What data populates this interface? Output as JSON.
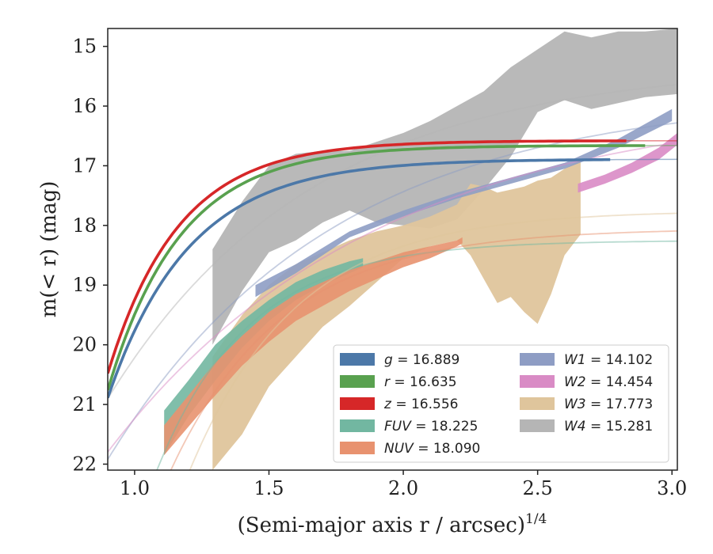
{
  "chart_data": {
    "type": "area",
    "xlabel": "(Semi-major axis r / arcsec)",
    "xlabel_superscript": "1/4",
    "ylabel": "m(< r) (mag)",
    "xlim": [
      0.9,
      3.02
    ],
    "ylim": [
      22.1,
      14.7
    ],
    "y_inverted": true,
    "xticks": [
      "1.0",
      "1.5",
      "2.0",
      "2.5",
      "3.0"
    ],
    "xtick_values": [
      1.0,
      1.5,
      2.0,
      2.5,
      3.0
    ],
    "yticks": [
      "15",
      "16",
      "17",
      "18",
      "19",
      "20",
      "21",
      "22"
    ],
    "ytick_values": [
      15,
      16,
      17,
      18,
      19,
      20,
      21,
      22
    ],
    "grid": false,
    "legend_placement": "lower-right",
    "legend_columns": 2,
    "series": [
      {
        "name": "g = 16.889",
        "var": "g",
        "value": "16.889",
        "color": "#4c78a8",
        "fit": {
          "m_tot": 16.889,
          "d": 4.0,
          "k": 3.3,
          "x0": 0.9
        },
        "band_end": 2.77,
        "band_width": 0.03
      },
      {
        "name": "r = 16.635",
        "var": "r",
        "value": "16.635",
        "color": "#59a14f",
        "fit": {
          "m_tot": 16.66,
          "d": 4.1,
          "k": 3.7,
          "x0": 0.9
        },
        "band_end": 2.9,
        "band_width": 0.03
      },
      {
        "name": "z = 16.556",
        "var": "z",
        "value": "16.556",
        "color": "#d62728",
        "fit": {
          "m_tot": 16.58,
          "d": 3.9,
          "k": 3.8,
          "x0": 0.9
        },
        "band_end": 2.83,
        "band_width": 0.03
      },
      {
        "name": "FUV = 18.225",
        "var": "FUV",
        "value": "18.225",
        "color": "#72b7a1",
        "fit": {
          "m_tot": 18.25,
          "d": 5.5,
          "k": 2.9,
          "x0": 0.96
        },
        "band_x": [
          1.11,
          1.2,
          1.3,
          1.4,
          1.5,
          1.6,
          1.7,
          1.8,
          1.85
        ],
        "band_upper": [
          21.1,
          20.6,
          20.0,
          19.6,
          19.25,
          18.95,
          18.75,
          18.6,
          18.55
        ],
        "band_lower": [
          21.85,
          21.2,
          20.6,
          20.05,
          19.6,
          19.25,
          19.0,
          18.8,
          18.7
        ]
      },
      {
        "name": "NUV = 18.090",
        "var": "NUV",
        "value": "18.090",
        "color": "#e8926f",
        "fit": {
          "m_tot": 18.05,
          "d": 5.6,
          "k": 2.4,
          "x0": 1.0
        },
        "band_x": [
          1.11,
          1.29,
          1.3,
          1.4,
          1.5,
          1.6,
          1.7,
          1.8,
          1.9,
          2.0,
          2.1,
          2.2,
          2.22
        ],
        "band_upper": [
          21.35,
          20.35,
          20.3,
          19.85,
          19.45,
          19.15,
          18.95,
          18.75,
          18.6,
          18.45,
          18.35,
          18.25,
          18.2
        ],
        "band_lower": [
          21.85,
          20.9,
          20.85,
          20.35,
          19.95,
          19.6,
          19.35,
          19.1,
          18.9,
          18.7,
          18.55,
          18.35,
          18.3
        ]
      },
      {
        "name": "W1 = 14.102",
        "var": "W1",
        "value": "14.102",
        "color": "#8e9dc4",
        "fit": {
          "m_tot": 15.8,
          "d": 6.5,
          "k": 1.2,
          "x0": 0.85
        },
        "band_x": [
          1.45,
          1.6,
          1.8,
          2.0,
          2.2,
          2.4,
          2.6,
          2.8,
          3.0
        ],
        "band_upper": [
          19.0,
          18.65,
          18.1,
          17.75,
          17.45,
          17.2,
          16.95,
          16.55,
          16.05
        ],
        "band_lower": [
          19.2,
          18.8,
          18.2,
          17.85,
          17.55,
          17.3,
          17.05,
          16.7,
          16.25
        ]
      },
      {
        "name": "W2 = 14.454",
        "var": "W2",
        "value": "14.454",
        "color": "#d98bc5",
        "fit": {
          "m_tot": 15.9,
          "d": 6.2,
          "k": 1.0,
          "x0": 0.85
        },
        "band_x": [
          2.65,
          2.75,
          2.85,
          2.95,
          3.02
        ],
        "band_upper": [
          17.3,
          17.15,
          16.95,
          16.7,
          16.45
        ],
        "band_lower": [
          17.45,
          17.3,
          17.12,
          16.9,
          16.65
        ]
      },
      {
        "name": "W3 = 17.773",
        "var": "W3",
        "value": "17.773",
        "color": "#dfc59c",
        "fit": {
          "m_tot": 17.75,
          "d": 5.0,
          "k": 2.5,
          "x0": 1.15
        },
        "band_x": [
          1.29,
          1.4,
          1.5,
          1.6,
          1.7,
          1.8,
          1.9,
          2.0,
          2.1,
          2.2,
          2.25,
          2.3,
          2.35,
          2.4,
          2.45,
          2.5,
          2.55,
          2.6,
          2.66
        ],
        "band_upper": [
          20.2,
          19.5,
          19.0,
          18.65,
          18.45,
          18.25,
          18.1,
          18.0,
          17.85,
          17.65,
          17.3,
          17.35,
          17.45,
          17.4,
          17.35,
          17.25,
          17.2,
          17.05,
          16.9
        ],
        "band_lower": [
          22.1,
          21.5,
          20.7,
          20.2,
          19.7,
          19.35,
          18.95,
          18.55,
          18.35,
          18.25,
          18.5,
          18.9,
          19.3,
          19.2,
          19.45,
          19.65,
          19.15,
          18.5,
          18.15
        ]
      },
      {
        "name": "W4 = 15.281",
        "var": "W4",
        "value": "15.281",
        "color": "#b5b5b5",
        "fit": {
          "m_tot": 15.28,
          "d": 6.0,
          "k": 1.3,
          "x0": 0.85
        },
        "band_x": [
          1.29,
          1.4,
          1.5,
          1.6,
          1.7,
          1.8,
          1.9,
          2.0,
          2.1,
          2.2,
          2.3,
          2.4,
          2.5,
          2.6,
          2.7,
          2.8,
          2.9,
          3.02
        ],
        "band_upper": [
          18.4,
          17.6,
          17.0,
          16.8,
          16.75,
          16.75,
          16.6,
          16.45,
          16.25,
          16.0,
          15.75,
          15.35,
          15.05,
          14.75,
          14.85,
          14.75,
          14.75,
          14.7
        ],
        "band_lower": [
          20.0,
          19.1,
          18.45,
          18.25,
          17.95,
          17.75,
          17.95,
          18.0,
          18.05,
          17.9,
          17.4,
          16.85,
          16.1,
          15.9,
          16.05,
          15.95,
          15.85,
          15.8
        ]
      }
    ]
  }
}
